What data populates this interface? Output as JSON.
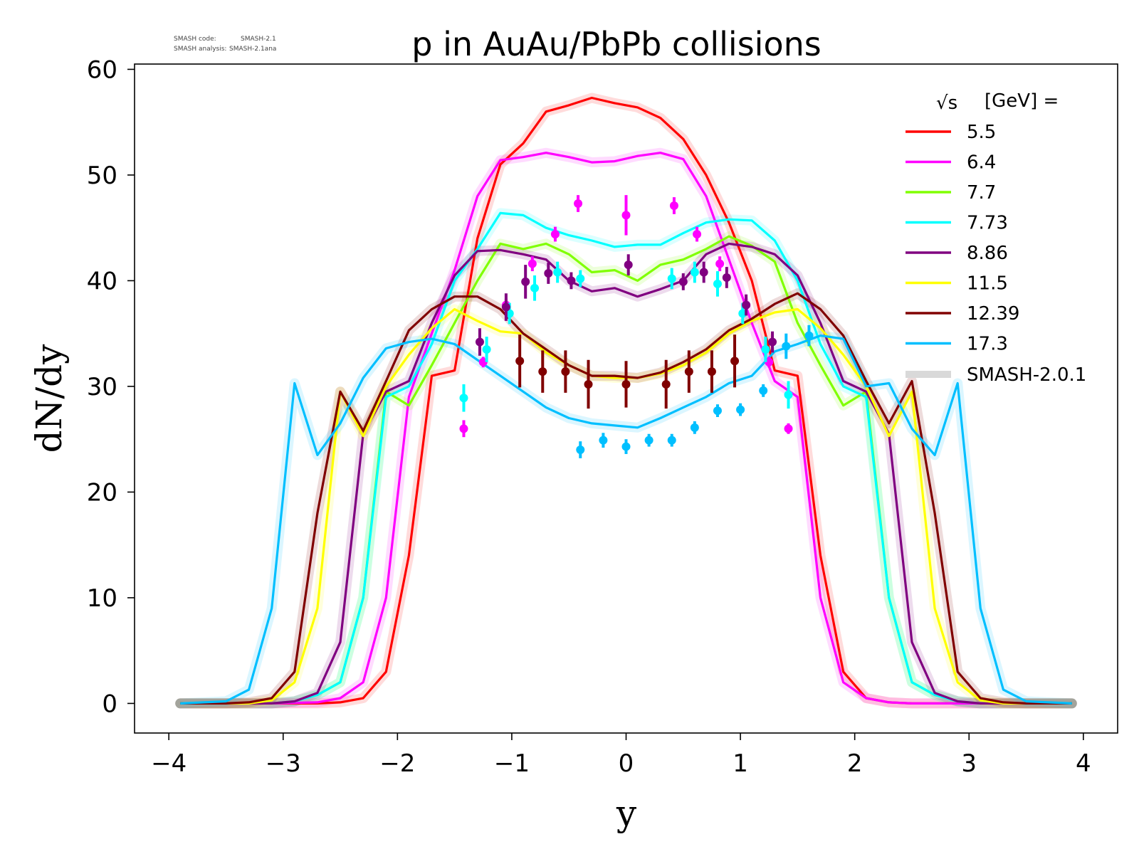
{
  "notes": {
    "line1_label": "SMASH code:",
    "line1_value": "SMASH-2.1",
    "line2_label": "SMASH analysis:",
    "line2_value": "SMASH-2.1ana"
  },
  "chart_data": {
    "type": "line",
    "title": "p in AuAu/PbPb collisions",
    "xlabel": "y",
    "ylabel": "dN/dy",
    "xlim": [
      -4.3,
      4.3
    ],
    "ylim": [
      -2.8,
      60.5
    ],
    "xticks": [
      -4,
      -3,
      -2,
      -1,
      0,
      1,
      2,
      3,
      4
    ],
    "xtick_labels": [
      "−4",
      "−3",
      "−2",
      "−1",
      "0",
      "1",
      "2",
      "3",
      "4"
    ],
    "yticks": [
      0,
      10,
      20,
      30,
      40,
      50,
      60
    ],
    "ytick_labels": [
      "0",
      "10",
      "20",
      "30",
      "40",
      "50",
      "60"
    ],
    "grid": false,
    "legend": {
      "placement": "top-right",
      "title_sym": "√s",
      "title_text": "[GeV] =",
      "model_label": "SMASH-2.0.1"
    },
    "series": [
      {
        "name": "5.5",
        "color": "#ff0000",
        "x": [
          -3.9,
          -3.5,
          -3.1,
          -2.7,
          -2.5,
          -2.3,
          -2.1,
          -1.9,
          -1.7,
          -1.5,
          -1.3,
          -1.1,
          -0.9,
          -0.7,
          -0.5,
          -0.3,
          -0.1,
          0.1,
          0.3,
          0.5,
          0.7,
          0.9,
          1.1,
          1.3,
          1.5,
          1.7,
          1.9,
          2.1,
          2.3,
          2.5,
          2.7,
          3.1,
          3.5,
          3.9
        ],
        "y": [
          0,
          0,
          0,
          0,
          0.1,
          0.5,
          3,
          14,
          31,
          31.5,
          44,
          51,
          53,
          56,
          56.6,
          57.3,
          56.8,
          56.4,
          55.4,
          53.4,
          50,
          45.5,
          40,
          31.5,
          31,
          14,
          3,
          0.5,
          0.1,
          0,
          0,
          0,
          0,
          0
        ]
      },
      {
        "name": "6.4",
        "color": "#ff00ff",
        "x": [
          -3.9,
          -3.5,
          -3.1,
          -2.7,
          -2.5,
          -2.3,
          -2.1,
          -1.9,
          -1.7,
          -1.5,
          -1.3,
          -1.1,
          -0.9,
          -0.7,
          -0.5,
          -0.3,
          -0.1,
          0.1,
          0.3,
          0.5,
          0.7,
          0.9,
          1.1,
          1.3,
          1.5,
          1.7,
          1.9,
          2.1,
          2.3,
          2.5,
          2.7,
          3.1,
          3.5,
          3.9
        ],
        "y": [
          0,
          0,
          0,
          0.1,
          0.5,
          2,
          10,
          29,
          35,
          41,
          48,
          51.4,
          51.7,
          52.1,
          51.7,
          51.2,
          51.3,
          51.8,
          52.1,
          51.5,
          48,
          42,
          36,
          30.5,
          29,
          10,
          2,
          0.5,
          0.1,
          0,
          0,
          0,
          0,
          0
        ]
      },
      {
        "name": "7.7",
        "color": "#80ff00",
        "x": [
          -3.9,
          -3.5,
          -3.1,
          -2.9,
          -2.7,
          -2.5,
          -2.3,
          -2.1,
          -1.9,
          -1.7,
          -1.5,
          -1.3,
          -1.1,
          -0.9,
          -0.7,
          -0.5,
          -0.3,
          -0.1,
          0.1,
          0.3,
          0.5,
          0.7,
          0.9,
          1.1,
          1.3,
          1.5,
          1.7,
          1.9,
          2.1,
          2.3,
          2.5,
          2.7,
          2.9,
          3.1,
          3.5,
          3.9
        ],
        "y": [
          0,
          0,
          0,
          0.2,
          0.8,
          2,
          10,
          29.5,
          28.2,
          32,
          36,
          40,
          43.5,
          43,
          43.5,
          42.5,
          40.8,
          41,
          40,
          41.5,
          42,
          43,
          44.2,
          43.3,
          41.8,
          36,
          32,
          28.2,
          29.5,
          10,
          2,
          0.8,
          0.2,
          0,
          0,
          0
        ]
      },
      {
        "name": "7.73",
        "color": "#00ffff",
        "x": [
          -3.9,
          -3.5,
          -3.1,
          -2.9,
          -2.7,
          -2.5,
          -2.3,
          -2.1,
          -1.9,
          -1.7,
          -1.5,
          -1.3,
          -1.1,
          -0.9,
          -0.7,
          -0.5,
          -0.3,
          -0.1,
          0.1,
          0.3,
          0.5,
          0.7,
          0.9,
          1.1,
          1.3,
          1.5,
          1.7,
          1.9,
          2.1,
          2.3,
          2.5,
          2.7,
          2.9,
          3.1,
          3.5,
          3.9
        ],
        "y": [
          0,
          0,
          0,
          0.2,
          0.8,
          2,
          10,
          29,
          30,
          34,
          40,
          43,
          46.4,
          46.2,
          45,
          44.3,
          43.8,
          43.2,
          43.4,
          43.4,
          44.5,
          45.5,
          45.8,
          45.7,
          43.8,
          40,
          34,
          30,
          29,
          10,
          2,
          0.8,
          0.2,
          0,
          0,
          0
        ]
      },
      {
        "name": "8.86",
        "color": "#800080",
        "x": [
          -3.9,
          -3.5,
          -3.1,
          -2.9,
          -2.7,
          -2.5,
          -2.3,
          -2.1,
          -1.9,
          -1.7,
          -1.5,
          -1.3,
          -1.1,
          -0.9,
          -0.7,
          -0.5,
          -0.3,
          -0.1,
          0.1,
          0.3,
          0.5,
          0.7,
          0.9,
          1.1,
          1.3,
          1.5,
          1.7,
          1.9,
          2.1,
          2.3,
          2.5,
          2.7,
          2.9,
          3.1,
          3.5,
          3.9
        ],
        "y": [
          0,
          0,
          0,
          0.2,
          1,
          5.8,
          25.5,
          29.5,
          30.5,
          36,
          40.5,
          42.8,
          42.9,
          42.5,
          42,
          40,
          39,
          39.3,
          38.5,
          39.2,
          40,
          42.5,
          43.5,
          43.2,
          42.5,
          40.5,
          36,
          30.5,
          29.5,
          25.5,
          5.8,
          1,
          0.2,
          0,
          0,
          0
        ]
      },
      {
        "name": "11.5",
        "color": "#ffff00",
        "x": [
          -3.9,
          -3.5,
          -3.3,
          -3.1,
          -2.9,
          -2.7,
          -2.5,
          -2.3,
          -2.1,
          -1.9,
          -1.7,
          -1.5,
          -1.3,
          -1.1,
          -0.9,
          -0.7,
          -0.5,
          -0.3,
          -0.1,
          0.1,
          0.3,
          0.5,
          0.7,
          0.9,
          1.1,
          1.3,
          1.5,
          1.7,
          1.9,
          2.1,
          2.3,
          2.5,
          2.7,
          2.9,
          3.1,
          3.3,
          3.5,
          3.9
        ],
        "y": [
          0,
          0,
          0,
          0.3,
          2,
          9,
          29.5,
          25.3,
          30,
          33,
          35.5,
          37.3,
          36.2,
          35.2,
          35,
          33.2,
          32,
          31,
          30.8,
          30.8,
          31.2,
          32,
          33.2,
          35,
          36.2,
          37,
          37.3,
          35.5,
          33,
          30,
          25.3,
          29.5,
          9,
          2,
          0.3,
          0,
          0,
          0
        ]
      },
      {
        "name": "12.39",
        "color": "#800000",
        "x": [
          -3.9,
          -3.5,
          -3.3,
          -3.1,
          -2.9,
          -2.7,
          -2.5,
          -2.3,
          -2.1,
          -1.9,
          -1.7,
          -1.5,
          -1.3,
          -1.1,
          -0.9,
          -0.7,
          -0.5,
          -0.3,
          -0.1,
          0.1,
          0.3,
          0.5,
          0.7,
          0.9,
          1.1,
          1.3,
          1.5,
          1.7,
          1.9,
          2.1,
          2.3,
          2.5,
          2.7,
          2.9,
          3.1,
          3.3,
          3.5,
          3.9
        ],
        "y": [
          0,
          0,
          0.1,
          0.5,
          3,
          18,
          29.5,
          25.8,
          30.5,
          35.3,
          37.3,
          38.5,
          38.5,
          37.3,
          35,
          33.5,
          32,
          31,
          31,
          30.8,
          31.3,
          32.3,
          33.5,
          35.3,
          36.4,
          37.8,
          38.8,
          37.3,
          34.8,
          30.5,
          26.5,
          30.5,
          18,
          3,
          0.5,
          0.1,
          0,
          0
        ]
      },
      {
        "name": "17.3",
        "color": "#00bfff",
        "x": [
          -3.9,
          -3.5,
          -3.3,
          -3.1,
          -2.9,
          -2.7,
          -2.5,
          -2.3,
          -2.1,
          -1.9,
          -1.7,
          -1.5,
          -1.3,
          -1.1,
          -0.9,
          -0.7,
          -0.5,
          -0.3,
          -0.1,
          0.1,
          0.3,
          0.5,
          0.7,
          0.9,
          1.1,
          1.3,
          1.5,
          1.7,
          1.9,
          2.1,
          2.3,
          2.5,
          2.7,
          2.9,
          3.1,
          3.3,
          3.5,
          3.9
        ],
        "y": [
          0,
          0.2,
          1.3,
          9,
          30.3,
          23.5,
          26.5,
          30.8,
          33.6,
          34.2,
          34.5,
          34,
          32.5,
          31,
          29.5,
          28,
          27,
          26.5,
          26.3,
          26.1,
          27,
          28,
          29,
          30.3,
          31,
          33.3,
          34,
          34.8,
          34.5,
          30,
          30.3,
          26,
          23.5,
          30.3,
          9,
          1.3,
          0.2,
          0
        ]
      }
    ],
    "data_points": [
      {
        "series": "6.4",
        "x": [
          -1.42,
          -1.25,
          -1.05,
          -0.82,
          -0.62,
          -0.42,
          0,
          0.42,
          0.62,
          0.82,
          1.05,
          1.25,
          1.42
        ],
        "y": [
          26,
          32.3,
          37.7,
          41.6,
          44.4,
          47.3,
          46.2,
          47.1,
          44.4,
          41.6,
          37.7,
          32.3,
          26
        ],
        "err": [
          0.8,
          0.5,
          0.6,
          0.7,
          0.7,
          0.8,
          1.9,
          0.8,
          0.7,
          0.7,
          0.6,
          0.5,
          0.5
        ]
      },
      {
        "series": "7.73",
        "x": [
          -1.42,
          -1.22,
          -1.02,
          -0.8,
          -0.6,
          -0.4,
          0.4,
          0.6,
          0.8,
          1.02,
          1.22,
          1.42
        ],
        "y": [
          28.9,
          33.5,
          36.9,
          39.3,
          40.8,
          40.2,
          40.2,
          40.8,
          39.7,
          36.9,
          33.5,
          29.2
        ],
        "err": [
          1.3,
          1.2,
          1.0,
          1.2,
          1.0,
          0.8,
          1.0,
          1.0,
          1.2,
          1.0,
          1.2,
          1.3
        ]
      },
      {
        "series": "8.86",
        "x": [
          -1.28,
          -1.05,
          -0.88,
          -0.68,
          -0.48,
          0.02,
          0.5,
          0.68,
          0.88,
          1.05,
          1.28
        ],
        "y": [
          34.2,
          37.5,
          39.9,
          40.7,
          40,
          41.5,
          39.9,
          40.8,
          40.3,
          37.7,
          34.2
        ],
        "err": [
          1.3,
          1.3,
          1.6,
          1.0,
          0.8,
          1.0,
          0.8,
          1.0,
          1.0,
          1.0,
          1.0
        ]
      },
      {
        "series": "12.39",
        "x": [
          -0.93,
          -0.73,
          -0.53,
          -0.33,
          0,
          0.35,
          0.55,
          0.75,
          0.95
        ],
        "y": [
          32.4,
          31.4,
          31.4,
          30.2,
          30.2,
          30.2,
          31.4,
          31.4,
          32.4
        ],
        "err": [
          2.5,
          2.0,
          2.0,
          2.3,
          2.2,
          2.3,
          2.0,
          2.0,
          2.5
        ]
      },
      {
        "series": "17.3",
        "x": [
          -0.4,
          -0.2,
          0,
          0.2,
          0.4,
          0.6,
          0.8,
          1.0,
          1.2,
          1.4,
          1.6
        ],
        "y": [
          24,
          24.9,
          24.3,
          24.9,
          24.9,
          26.1,
          27.7,
          27.8,
          29.6,
          33.8,
          34.8
        ],
        "err": [
          0.8,
          0.7,
          0.7,
          0.6,
          0.6,
          0.6,
          0.6,
          0.6,
          0.6,
          1.2,
          1.0
        ]
      }
    ]
  }
}
